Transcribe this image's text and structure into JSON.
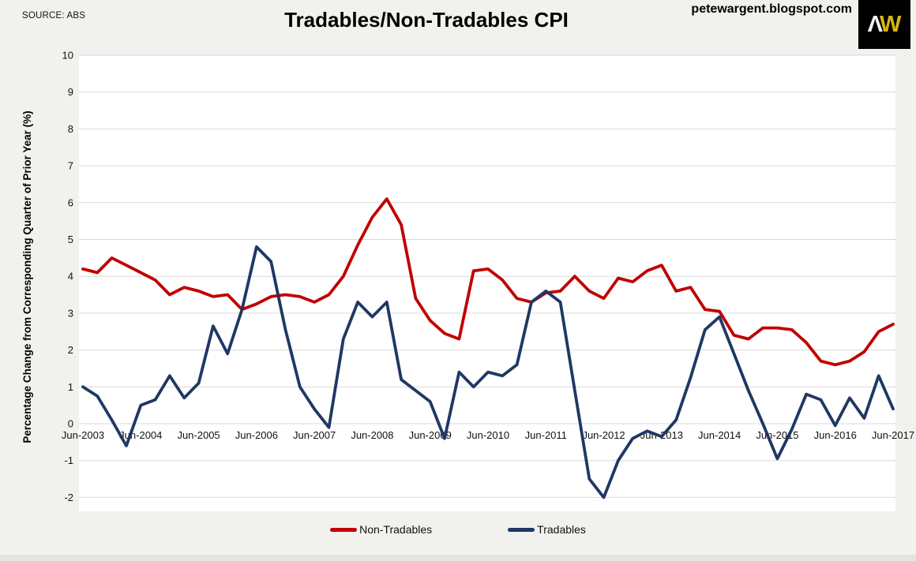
{
  "header": {
    "source": "SOURCE: ABS",
    "title": "Tradables/Non-Tradables CPI",
    "site_url": "petewargent.blogspot.com",
    "logo": {
      "letter1": "Λ",
      "letter2": "W",
      "bg": "#000000",
      "letter1_color": "#f2f2f2",
      "letter2_color": "#d9b310"
    }
  },
  "legend": {
    "items": [
      {
        "label": "Non-Tradables",
        "color": "#c00000"
      },
      {
        "label": "Tradables",
        "color": "#1f3864"
      }
    ]
  },
  "chart_data": {
    "type": "line",
    "title": "Tradables/Non-Tradables CPI",
    "xlabel": "",
    "ylabel": "Percentage Change from Corresponding Quarter of Prior Year (%)",
    "ylim": [
      -2,
      10
    ],
    "yticks": [
      10,
      9,
      8,
      7,
      6,
      5,
      4,
      3,
      2,
      1,
      0,
      -1,
      -2
    ],
    "grid": true,
    "legend_position": "bottom",
    "x_tick_labels": [
      "Jun-2003",
      "Jun-2004",
      "Jun-2005",
      "Jun-2006",
      "Jun-2007",
      "Jun-2008",
      "Jun-2009",
      "Jun-2010",
      "Jun-2011",
      "Jun-2012",
      "Jun-2013",
      "Jun-2014",
      "Jun-2015",
      "Jun-2016",
      "Jun-2017"
    ],
    "categories": [
      "Jun-2003",
      "Sep-2003",
      "Dec-2003",
      "Mar-2004",
      "Jun-2004",
      "Sep-2004",
      "Dec-2004",
      "Mar-2005",
      "Jun-2005",
      "Sep-2005",
      "Dec-2005",
      "Mar-2006",
      "Jun-2006",
      "Sep-2006",
      "Dec-2006",
      "Mar-2007",
      "Jun-2007",
      "Sep-2007",
      "Dec-2007",
      "Mar-2008",
      "Jun-2008",
      "Sep-2008",
      "Dec-2008",
      "Mar-2009",
      "Jun-2009",
      "Sep-2009",
      "Dec-2009",
      "Mar-2010",
      "Jun-2010",
      "Sep-2010",
      "Dec-2010",
      "Mar-2011",
      "Jun-2011",
      "Sep-2011",
      "Dec-2011",
      "Mar-2012",
      "Jun-2012",
      "Sep-2012",
      "Dec-2012",
      "Mar-2013",
      "Jun-2013",
      "Sep-2013",
      "Dec-2013",
      "Mar-2014",
      "Jun-2014",
      "Sep-2014",
      "Dec-2014",
      "Mar-2015",
      "Jun-2015",
      "Sep-2015",
      "Dec-2015",
      "Mar-2016",
      "Jun-2016",
      "Sep-2016",
      "Dec-2016",
      "Mar-2017",
      "Jun-2017"
    ],
    "series": [
      {
        "name": "Non-Tradables",
        "color": "#c00000",
        "values": [
          4.2,
          4.1,
          4.5,
          4.3,
          4.1,
          3.9,
          3.5,
          3.7,
          3.6,
          3.45,
          3.5,
          3.1,
          3.25,
          3.45,
          3.5,
          3.45,
          3.3,
          3.5,
          4.0,
          4.85,
          5.6,
          6.1,
          5.4,
          3.4,
          2.8,
          2.45,
          2.3,
          4.15,
          4.2,
          3.9,
          3.4,
          3.3,
          3.55,
          3.6,
          4.0,
          3.6,
          3.4,
          3.95,
          3.85,
          4.15,
          4.3,
          3.6,
          3.7,
          3.1,
          3.05,
          2.4,
          2.3,
          2.6,
          2.6,
          2.55,
          2.2,
          1.7,
          1.6,
          1.7,
          1.95,
          2.5,
          2.7
        ]
      },
      {
        "name": "Tradables",
        "color": "#1f3864",
        "values": [
          1.0,
          0.75,
          0.1,
          -0.6,
          0.5,
          0.65,
          1.3,
          0.7,
          1.1,
          2.65,
          1.9,
          3.1,
          4.8,
          4.4,
          2.55,
          1.0,
          0.4,
          -0.1,
          2.3,
          3.3,
          2.9,
          3.3,
          1.2,
          0.9,
          0.6,
          -0.4,
          1.4,
          1.0,
          1.4,
          1.3,
          1.6,
          3.3,
          3.6,
          3.3,
          0.9,
          -1.5,
          -2.0,
          -1.0,
          -0.4,
          -0.2,
          -0.35,
          0.1,
          1.25,
          2.55,
          2.9,
          1.9,
          0.9,
          0.0,
          -0.95,
          -0.15,
          0.8,
          0.65,
          -0.05,
          0.7,
          0.15,
          1.3,
          0.4
        ]
      }
    ]
  }
}
